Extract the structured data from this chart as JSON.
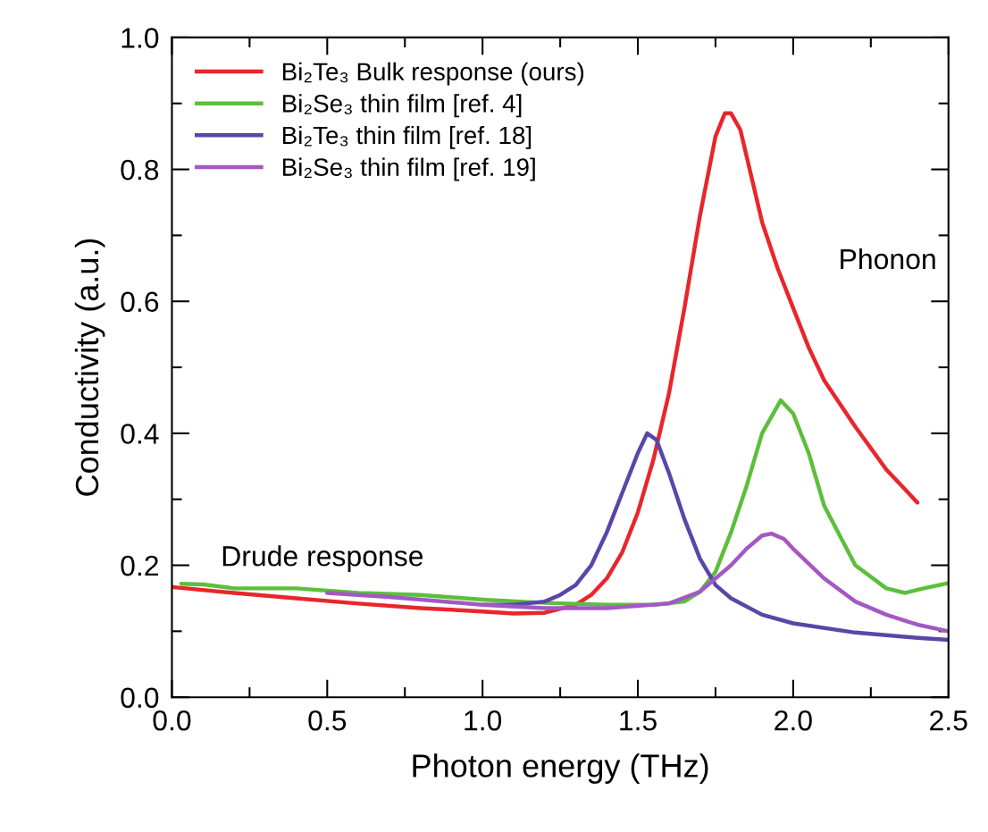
{
  "chart_data": {
    "type": "line",
    "xlabel": "Photon energy (THz)",
    "ylabel": "Conductivity (a.u.)",
    "xlim": [
      0,
      2.5
    ],
    "ylim": [
      0,
      1.0
    ],
    "xticks": [
      {
        "value": 0,
        "label": "0.0"
      },
      {
        "value": 0.25,
        "label": null
      },
      {
        "value": 0.5,
        "label": "0.5"
      },
      {
        "value": 0.75,
        "label": null
      },
      {
        "value": 1.0,
        "label": "1.0"
      },
      {
        "value": 1.25,
        "label": null
      },
      {
        "value": 1.5,
        "label": "1.5"
      },
      {
        "value": 1.75,
        "label": null
      },
      {
        "value": 2.0,
        "label": "2.0"
      },
      {
        "value": 2.25,
        "label": null
      },
      {
        "value": 2.5,
        "label": "2.5"
      }
    ],
    "yticks": [
      {
        "value": 0,
        "label": "0.0"
      },
      {
        "value": 0.1,
        "label": null
      },
      {
        "value": 0.2,
        "label": "0.2"
      },
      {
        "value": 0.3,
        "label": null
      },
      {
        "value": 0.4,
        "label": "0.4"
      },
      {
        "value": 0.5,
        "label": null
      },
      {
        "value": 0.6,
        "label": "0.6"
      },
      {
        "value": 0.7,
        "label": null
      },
      {
        "value": 0.8,
        "label": "0.8"
      },
      {
        "value": 0.9,
        "label": null
      },
      {
        "value": 1.0,
        "label": "1.0"
      }
    ],
    "grid": false,
    "legend": "top left",
    "marker": "none",
    "line_style": "solid",
    "series": [
      {
        "name": "Bi₂Te₃ Bulk response (ours)",
        "color": "#e8262b",
        "x": [
          0,
          0.2,
          0.4,
          0.6,
          0.8,
          1.0,
          1.1,
          1.2,
          1.3,
          1.35,
          1.4,
          1.45,
          1.5,
          1.55,
          1.6,
          1.65,
          1.7,
          1.75,
          1.78,
          1.8,
          1.83,
          1.87,
          1.9,
          1.95,
          2.0,
          2.05,
          2.1,
          2.2,
          2.3,
          2.4
        ],
        "values": [
          0.167,
          0.158,
          0.15,
          0.142,
          0.135,
          0.13,
          0.127,
          0.128,
          0.14,
          0.155,
          0.18,
          0.22,
          0.28,
          0.36,
          0.46,
          0.59,
          0.73,
          0.85,
          0.885,
          0.885,
          0.86,
          0.78,
          0.72,
          0.65,
          0.59,
          0.53,
          0.48,
          0.41,
          0.345,
          0.295
        ]
      },
      {
        "name": "Bi₂Se₃ thin film [ref. 4]",
        "color": "#5cbf3c",
        "x": [
          0.03,
          0.1,
          0.2,
          0.4,
          0.6,
          0.8,
          1.0,
          1.2,
          1.4,
          1.55,
          1.65,
          1.7,
          1.75,
          1.8,
          1.85,
          1.9,
          1.96,
          2.0,
          2.05,
          2.1,
          2.2,
          2.3,
          2.36,
          2.42,
          2.5
        ],
        "values": [
          0.172,
          0.171,
          0.165,
          0.165,
          0.158,
          0.155,
          0.148,
          0.143,
          0.14,
          0.14,
          0.145,
          0.16,
          0.19,
          0.25,
          0.32,
          0.4,
          0.45,
          0.43,
          0.37,
          0.29,
          0.2,
          0.165,
          0.158,
          0.165,
          0.173
        ]
      },
      {
        "name": "Bi₂Te₃ thin film [ref. 18]",
        "color": "#5a46a8",
        "x": [
          1.0,
          1.1,
          1.2,
          1.25,
          1.3,
          1.35,
          1.4,
          1.45,
          1.5,
          1.53,
          1.56,
          1.6,
          1.65,
          1.7,
          1.75,
          1.8,
          1.9,
          2.0,
          2.2,
          2.4,
          2.5
        ],
        "values": [
          0.14,
          0.14,
          0.145,
          0.155,
          0.17,
          0.2,
          0.25,
          0.31,
          0.37,
          0.4,
          0.39,
          0.34,
          0.27,
          0.21,
          0.17,
          0.15,
          0.125,
          0.112,
          0.098,
          0.09,
          0.087
        ]
      },
      {
        "name": "Bi₂Se₃ thin film [ref. 19]",
        "color": "#a259c4",
        "x": [
          0.5,
          0.7,
          1.0,
          1.2,
          1.4,
          1.6,
          1.7,
          1.8,
          1.85,
          1.9,
          1.93,
          1.97,
          2.0,
          2.1,
          2.2,
          2.3,
          2.4,
          2.5
        ],
        "values": [
          0.158,
          0.152,
          0.14,
          0.135,
          0.135,
          0.142,
          0.16,
          0.2,
          0.225,
          0.245,
          0.248,
          0.24,
          0.225,
          0.18,
          0.145,
          0.125,
          0.11,
          0.1
        ]
      }
    ],
    "annotations": [
      "Drude response",
      "Phonon"
    ]
  }
}
